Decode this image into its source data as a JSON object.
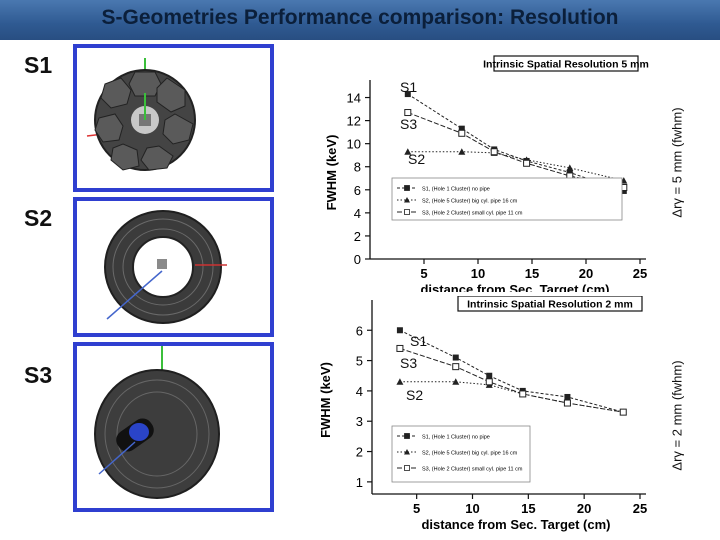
{
  "header": {
    "title": "S-Geometries Performance comparison: Resolution"
  },
  "rows": [
    {
      "label": "S1"
    },
    {
      "label": "S2"
    },
    {
      "label": "S3"
    }
  ],
  "side_labels": {
    "top": "Δrγ = 5 mm (fwhm)",
    "bottom": "Δrγ = 2 mm (fwhm)"
  },
  "colors": {
    "frame": "#2f3fd0",
    "header": "#2f5a92",
    "detector": "#3a3a3a"
  },
  "chart_data": [
    {
      "type": "line",
      "title": "Intrinsic Spatial Resolution 5 mm",
      "xlabel": "distance from Sec. Target (cm)",
      "ylabel": "FWHM (keV)",
      "xlim": [
        0,
        25
      ],
      "ylim": [
        0,
        15
      ],
      "xticks": [
        "5",
        "10",
        "15",
        "20",
        "25"
      ],
      "yticks": [
        "0",
        "2",
        "4",
        "6",
        "8",
        "10",
        "12",
        "14"
      ],
      "legend": {
        "placement": "bottom",
        "entries": [
          "S1, (Hole 1 Cluster) no pipe",
          "S2, (Hole 5 Cluster) big cyl. pipe 16 cm",
          "S3, (Hole 2 Cluster) small cyl. pipe 11 cm"
        ]
      },
      "annotations": [
        "S1",
        "S3",
        "S2"
      ],
      "series": [
        {
          "name": "S1, (Hole 1 Cluster) no pipe",
          "marker": "square",
          "x": [
            3.5,
            8.5,
            11.5,
            14.5,
            18.5,
            23.5
          ],
          "y": [
            14.3,
            11.3,
            9.5,
            8.5,
            7.5,
            5.9
          ]
        },
        {
          "name": "S2, (Hole 5 Cluster) big cyl. pipe 16 cm",
          "marker": "triangle",
          "x": [
            3.5,
            8.5,
            11.5,
            14.5,
            18.5,
            23.5
          ],
          "y": [
            9.3,
            9.3,
            9.2,
            8.6,
            7.9,
            6.8
          ]
        },
        {
          "name": "S3, (Hole 2 Cluster) small cyl. pipe 11 cm",
          "marker": "open-square",
          "x": [
            3.5,
            8.5,
            11.5,
            14.5,
            18.5,
            23.5
          ],
          "y": [
            12.7,
            10.9,
            9.3,
            8.3,
            7.2,
            6.2
          ]
        }
      ]
    },
    {
      "type": "line",
      "title": "Intrinsic Spatial Resolution 2 mm",
      "xlabel": "distance from Sec. Target (cm)",
      "ylabel": "FWHM (keV)",
      "xlim": [
        1,
        25
      ],
      "ylim": [
        0.6,
        6.8
      ],
      "xticks": [
        "5",
        "10",
        "15",
        "20",
        "25"
      ],
      "yticks": [
        "1",
        "2",
        "3",
        "4",
        "5",
        "6"
      ],
      "legend": {
        "placement": "bottom-right",
        "entries": [
          "S1, (Hole 1 Cluster) no pipe",
          "S2, (Hole 5 Cluster) big cyl. pipe 16 cm",
          "S3, (Hole 2 Cluster) small cyl. pipe 11 cm"
        ]
      },
      "annotations": [
        "S1",
        "S3",
        "S2"
      ],
      "series": [
        {
          "name": "S1, (Hole 1 Cluster) no pipe",
          "marker": "square",
          "x": [
            3.5,
            8.5,
            11.5,
            14.5,
            18.5,
            23.5
          ],
          "y": [
            6.0,
            5.1,
            4.5,
            4.0,
            3.8,
            3.3
          ]
        },
        {
          "name": "S2, (Hole 5 Cluster) big cyl. pipe 16 cm",
          "marker": "triangle",
          "x": [
            3.5,
            8.5,
            11.5,
            14.5,
            18.5,
            23.5
          ],
          "y": [
            4.3,
            4.3,
            4.2,
            3.9,
            3.6,
            3.3
          ]
        },
        {
          "name": "S3, (Hole 2 Cluster) small cyl. pipe 11 cm",
          "marker": "open-square",
          "x": [
            3.5,
            8.5,
            11.5,
            14.5,
            18.5,
            23.5
          ],
          "y": [
            5.4,
            4.8,
            4.3,
            3.9,
            3.6,
            3.3
          ]
        }
      ]
    }
  ]
}
